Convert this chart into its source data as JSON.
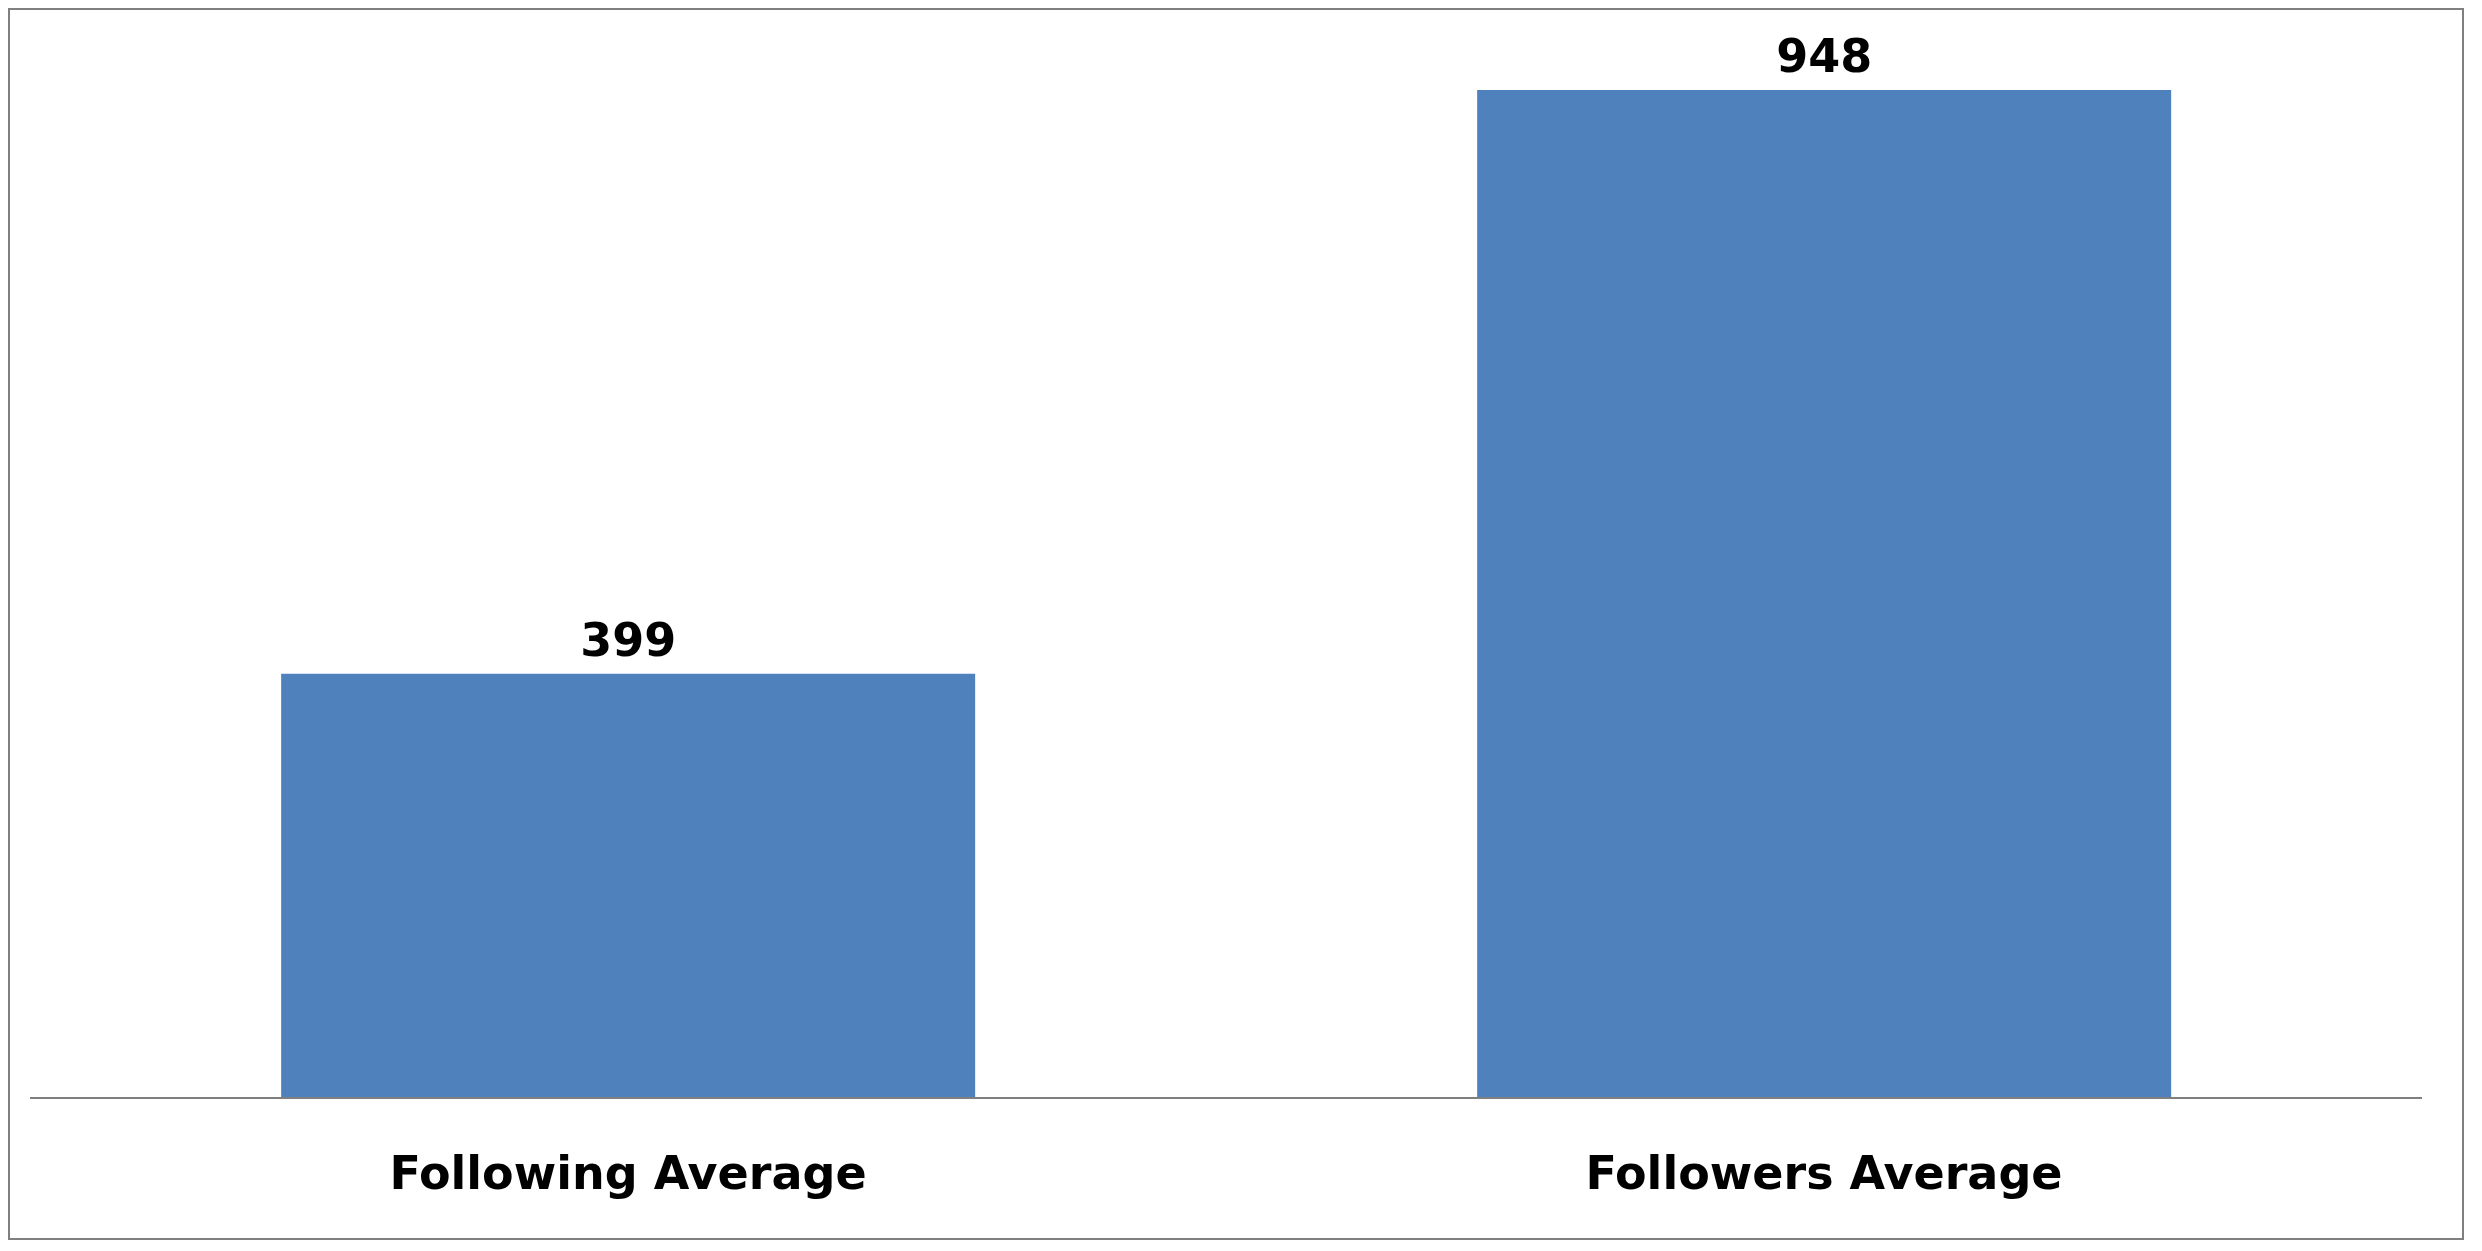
{
  "chart_data": {
    "type": "bar",
    "categories": [
      "Following Average",
      "Followers Average"
    ],
    "values": [
      399,
      948
    ],
    "color": "#4f81bd",
    "data_labels": true
  }
}
